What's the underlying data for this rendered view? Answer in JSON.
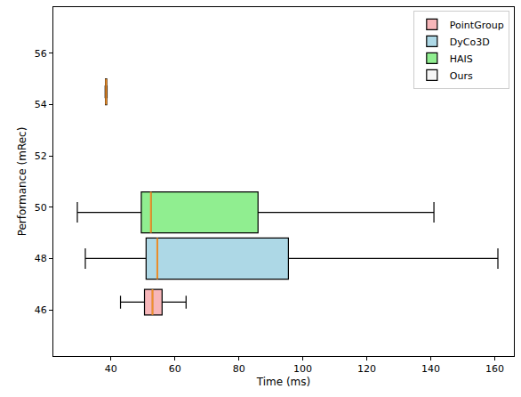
{
  "chart_data": {
    "type": "box",
    "orientation": "horizontal",
    "x_label": "Time (ms)",
    "y_label": "Performance (mRec)",
    "xlim": [
      22,
      166
    ],
    "xticks": [
      40,
      60,
      80,
      100,
      120,
      140,
      160
    ],
    "ylim": [
      44.2,
      57.8
    ],
    "yticks": [
      46,
      48,
      50,
      52,
      54,
      56
    ],
    "grid": false,
    "legend": "upper right",
    "series": [
      {
        "name": "PointGroup",
        "color": "#f7b6b9",
        "position": 46.3,
        "lower_whisker": 43,
        "q1": 50.5,
        "median": 53,
        "q3": 56,
        "upper_whisker": 63.5
      },
      {
        "name": "DyCo3D",
        "color": "#add8e6",
        "position": 48.0,
        "lower_whisker": 32,
        "q1": 51,
        "median": 54.5,
        "q3": 95.5,
        "upper_whisker": 161
      },
      {
        "name": "HAIS",
        "color": "#90ee90",
        "position": 49.8,
        "lower_whisker": 29.5,
        "q1": 49.5,
        "median": 52.5,
        "q3": 86,
        "upper_whisker": 141
      },
      {
        "name": "Ours",
        "color": "#f5f5f5",
        "position": 54.5,
        "lower_whisker": 38.2,
        "q1": 38.3,
        "median": 38.5,
        "q3": 38.7,
        "upper_whisker": 38.8
      }
    ]
  }
}
